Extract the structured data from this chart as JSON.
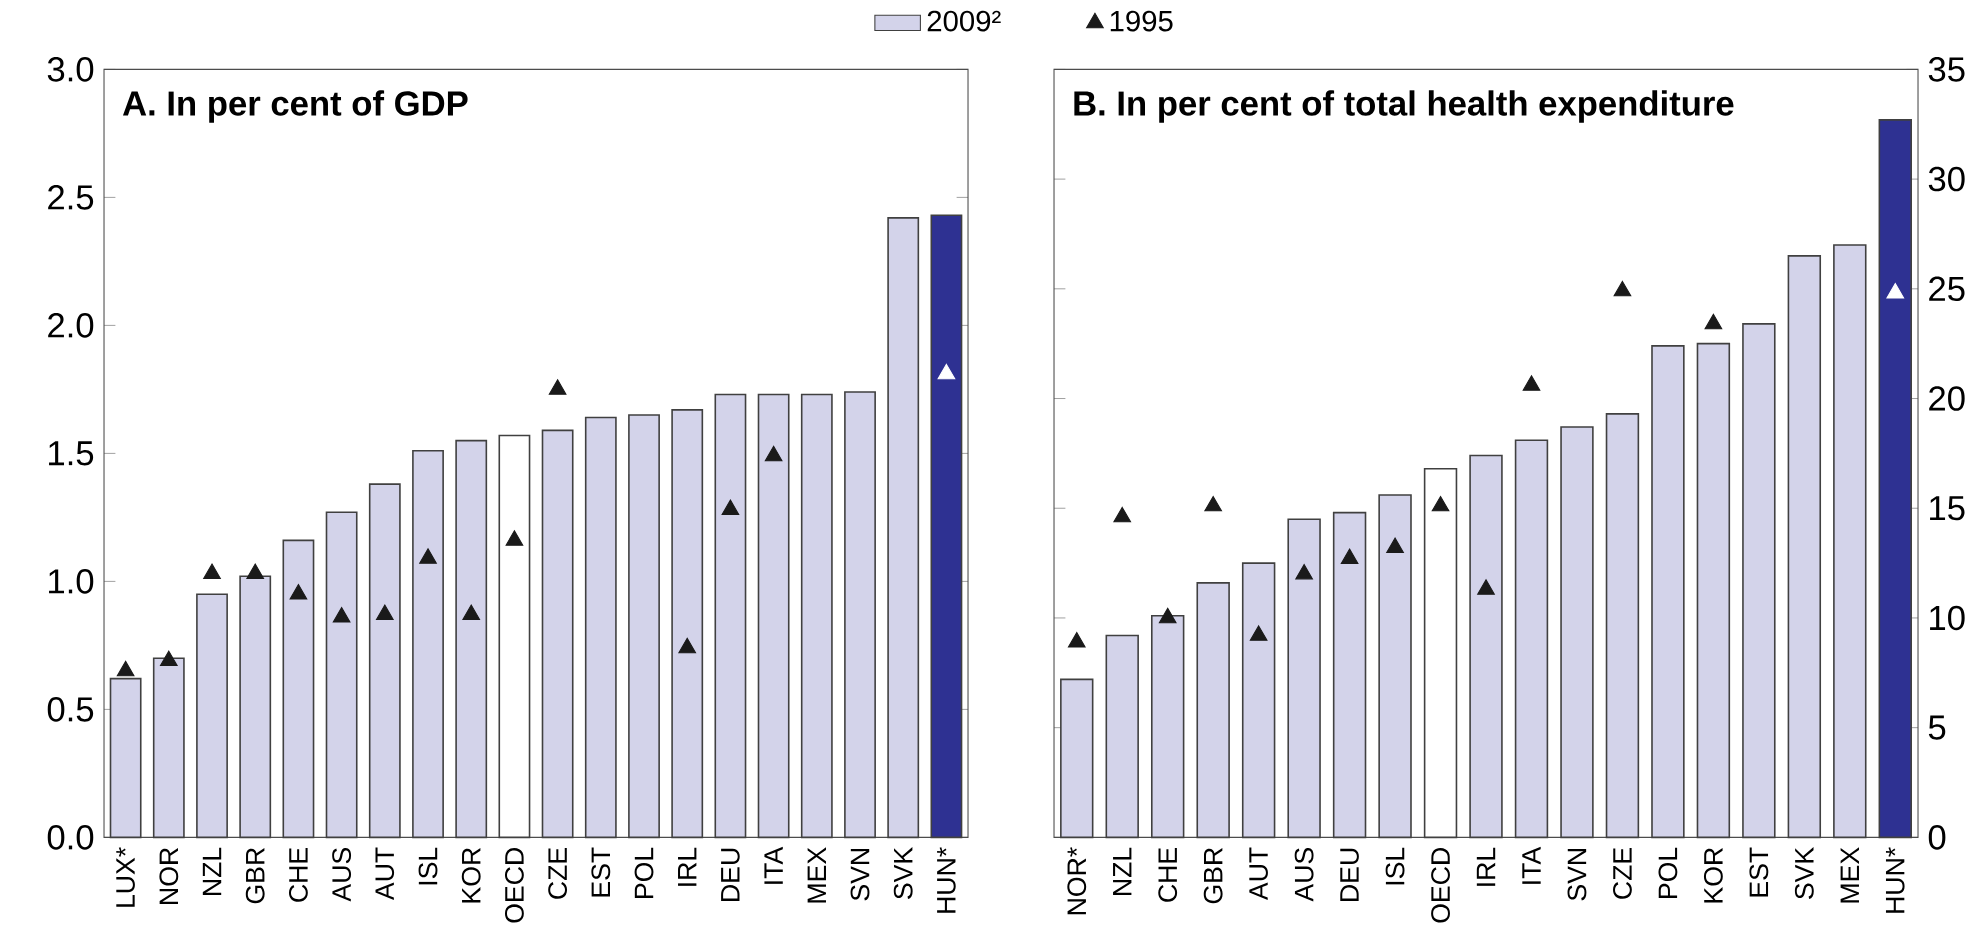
{
  "chart_data": [
    {
      "type": "bar",
      "title": "A. In per cent of GDP",
      "categories": [
        "LUX*",
        "NOR",
        "NZL",
        "GBR",
        "CHE",
        "AUS",
        "AUT",
        "ISL",
        "KOR",
        "OECD",
        "CZE",
        "EST",
        "POL",
        "IRL",
        "DEU",
        "ITA",
        "MEX",
        "SVN",
        "SVK",
        "HUN*"
      ],
      "series": [
        {
          "name": "2009²",
          "color": "#d3d3ea",
          "colors": [
            "#d3d3ea",
            "#d3d3ea",
            "#d3d3ea",
            "#d3d3ea",
            "#d3d3ea",
            "#d3d3ea",
            "#d3d3ea",
            "#d3d3ea",
            "#d3d3ea",
            "#ffffff",
            "#d3d3ea",
            "#d3d3ea",
            "#d3d3ea",
            "#d3d3ea",
            "#d3d3ea",
            "#d3d3ea",
            "#d3d3ea",
            "#d3d3ea",
            "#d3d3ea",
            "#2e3192"
          ],
          "values": [
            0.62,
            0.7,
            0.95,
            1.02,
            1.16,
            1.27,
            1.38,
            1.51,
            1.55,
            1.57,
            1.59,
            1.64,
            1.65,
            1.67,
            1.73,
            1.73,
            1.73,
            1.74,
            2.42,
            2.43
          ]
        },
        {
          "name": "1995",
          "type": "scatter",
          "marker": "triangle",
          "color": "#1a1a1a",
          "colors": [
            "#1a1a1a",
            "#1a1a1a",
            "#1a1a1a",
            "#1a1a1a",
            "#1a1a1a",
            "#1a1a1a",
            "#1a1a1a",
            "#1a1a1a",
            "#1a1a1a",
            "#1a1a1a",
            "#1a1a1a",
            "#1a1a1a",
            "#1a1a1a",
            "#1a1a1a",
            "#1a1a1a",
            "#1a1a1a",
            "#1a1a1a",
            "#1a1a1a",
            "#1a1a1a",
            "#ffffff"
          ],
          "values": [
            0.65,
            0.69,
            1.03,
            1.03,
            0.95,
            0.86,
            0.87,
            1.09,
            0.87,
            1.16,
            1.75,
            null,
            null,
            0.74,
            1.28,
            1.49,
            null,
            null,
            null,
            1.81
          ]
        }
      ],
      "ylim": [
        0,
        3
      ],
      "yticks": [
        {
          "value": 0,
          "label": "0.0"
        },
        0.5,
        {
          "value": 1,
          "label": "1.0"
        },
        1.5,
        {
          "value": 2,
          "label": "2.0"
        },
        2.5,
        {
          "value": 3,
          "label": "3.0"
        }
      ],
      "legend": "top"
    },
    {
      "type": "bar",
      "title": "B. In per cent of total health expenditure",
      "categories": [
        "NOR*",
        "NZL",
        "CHE",
        "GBR",
        "AUT",
        "AUS",
        "DEU",
        "ISL",
        "OECD",
        "IRL",
        "ITA",
        "SVN",
        "CZE",
        "POL",
        "KOR",
        "EST",
        "SVK",
        "MEX",
        "HUN*"
      ],
      "series": [
        {
          "colors": [
            "#d3d3ea",
            "#d3d3ea",
            "#d3d3ea",
            "#d3d3ea",
            "#d3d3ea",
            "#d3d3ea",
            "#d3d3ea",
            "#d3d3ea",
            "#ffffff",
            "#d3d3ea",
            "#d3d3ea",
            "#d3d3ea",
            "#d3d3ea",
            "#d3d3ea",
            "#d3d3ea",
            "#d3d3ea",
            "#d3d3ea",
            "#d3d3ea",
            "#2e3192"
          ],
          "values": [
            7.2,
            9.2,
            10.1,
            11.6,
            12.5,
            14.5,
            14.8,
            15.6,
            16.8,
            17.4,
            18.1,
            18.7,
            19.3,
            22.4,
            22.5,
            23.4,
            26.5,
            27.0,
            32.7
          ]
        },
        {
          "type": "scatter",
          "marker": "triangle",
          "colors": [
            "#1a1a1a",
            "#1a1a1a",
            "#1a1a1a",
            "#1a1a1a",
            "#1a1a1a",
            "#1a1a1a",
            "#1a1a1a",
            "#1a1a1a",
            "#1a1a1a",
            "#1a1a1a",
            "#1a1a1a",
            "#1a1a1a",
            "#1a1a1a",
            "#1a1a1a",
            "#1a1a1a",
            "#1a1a1a",
            "#1a1a1a",
            "#1a1a1a",
            "#ffffff"
          ],
          "values": [
            8.9,
            14.6,
            10.0,
            15.1,
            9.2,
            12.0,
            12.7,
            13.2,
            15.1,
            11.3,
            20.6,
            null,
            24.9,
            null,
            23.4,
            null,
            null,
            null,
            24.8
          ]
        }
      ],
      "ylim": [
        0,
        35
      ],
      "yticks": [
        0,
        5,
        10,
        15,
        20,
        25,
        30,
        35
      ]
    }
  ]
}
